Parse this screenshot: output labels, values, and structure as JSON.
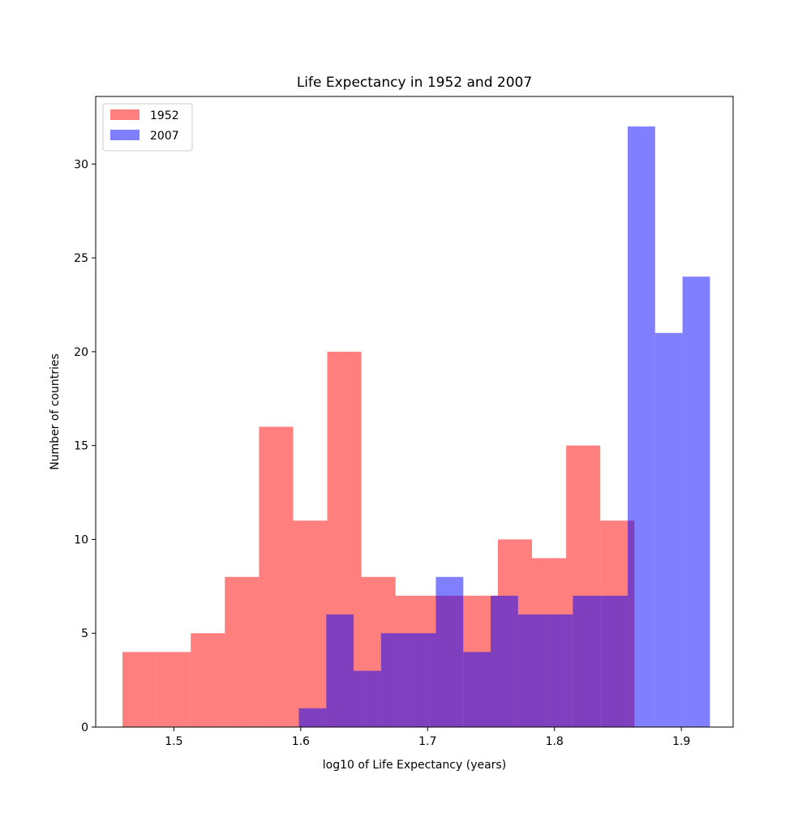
{
  "chart_data": {
    "type": "bar",
    "title": "Life Expectancy in 1952 and 2007",
    "xlabel": "log10 of Life Expectancy (years)",
    "ylabel": "Number of countries",
    "xlim": [
      1.4384,
      1.9408
    ],
    "ylim": [
      0,
      33.6
    ],
    "xticks": [
      1.5,
      1.6,
      1.7,
      1.8,
      1.9
    ],
    "xtick_labels": [
      "1.5",
      "1.6",
      "1.7",
      "1.8",
      "1.9"
    ],
    "yticks": [
      0,
      5,
      10,
      15,
      20,
      25,
      30
    ],
    "ytick_labels": [
      "0",
      "5",
      "10",
      "15",
      "20",
      "25",
      "30"
    ],
    "grid": false,
    "legend_position": "top-left",
    "series": [
      {
        "name": "1952",
        "color": "#ff0000",
        "opacity": 0.5,
        "bin_edges": [
          1.4595,
          1.4864,
          1.5133,
          1.5402,
          1.5671,
          1.594,
          1.6209,
          1.6478,
          1.6747,
          1.7016,
          1.7285,
          1.7554,
          1.7823,
          1.8092,
          1.8361,
          1.863
        ],
        "values": [
          4,
          4,
          5,
          8,
          16,
          11,
          20,
          8,
          7,
          7,
          7,
          10,
          9,
          15,
          11
        ]
      },
      {
        "name": "2007",
        "color": "#0000ff",
        "opacity": 0.5,
        "bin_edges": [
          1.5985,
          1.6201,
          1.6417,
          1.6633,
          1.6849,
          1.7065,
          1.7281,
          1.7497,
          1.7713,
          1.7929,
          1.8145,
          1.8361,
          1.8577,
          1.8793,
          1.9009,
          1.9225
        ],
        "values": [
          1,
          6,
          3,
          5,
          5,
          8,
          4,
          7,
          6,
          6,
          7,
          7,
          32,
          21,
          24
        ]
      }
    ]
  }
}
